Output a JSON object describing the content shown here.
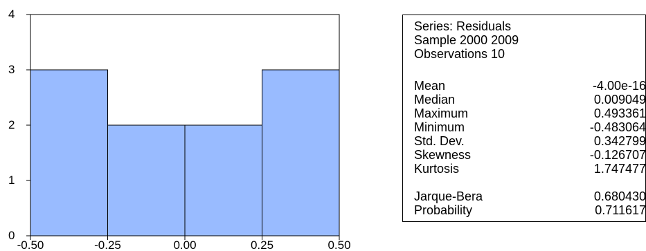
{
  "chart_data": {
    "type": "bar",
    "bins": [
      {
        "from": -0.5,
        "to": -0.25,
        "count": 3
      },
      {
        "from": -0.25,
        "to": 0.0,
        "count": 2
      },
      {
        "from": 0.0,
        "to": 0.25,
        "count": 2
      },
      {
        "from": 0.25,
        "to": 0.5,
        "count": 3
      }
    ],
    "xticks": [
      "-0.50",
      "-0.25",
      "0.00",
      "0.25",
      "0.50"
    ],
    "yticks": [
      "0",
      "1",
      "2",
      "3",
      "4"
    ],
    "xlim": [
      -0.5,
      0.5
    ],
    "ylim": [
      0,
      4
    ],
    "title": "",
    "xlabel": "",
    "ylabel": "",
    "bar_color": "#99bbff",
    "grid": false
  },
  "stats": {
    "series": "Series: Residuals",
    "sample": "Sample 2000 2009",
    "observations": "Observations 10",
    "rows": [
      {
        "label": "Mean",
        "value": "-4.00e-16"
      },
      {
        "label": "Median",
        "value": "0.009049"
      },
      {
        "label": "Maximum",
        "value": "0.493361"
      },
      {
        "label": "Minimum",
        "value": "-0.483064"
      },
      {
        "label": "Std. Dev.",
        "value": "0.342799"
      },
      {
        "label": "Skewness",
        "value": "-0.126707"
      },
      {
        "label": "Kurtosis",
        "value": "1.747477"
      },
      {
        "label": "Jarque-Bera",
        "value": "0.680430"
      },
      {
        "label": "Probability",
        "value": "0.711617"
      }
    ]
  }
}
